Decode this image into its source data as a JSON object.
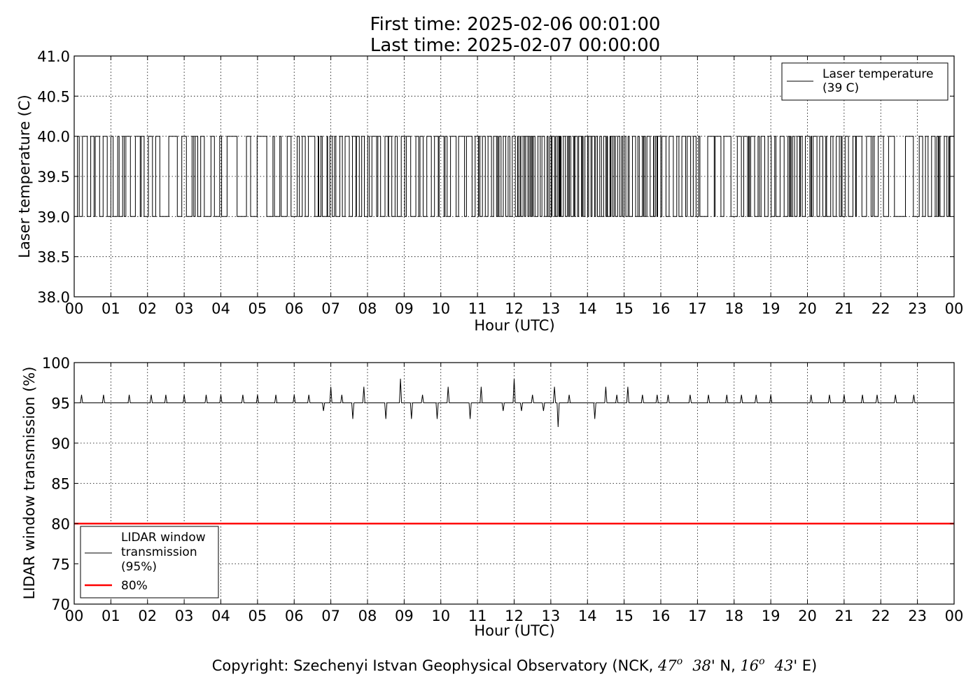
{
  "header": {
    "title_line1": "First time: 2025-02-06 00:01:00",
    "title_line2": "Last time: 2025-02-07 00:00:00"
  },
  "footer": {
    "copyright_prefix": "Copyright: Szechenyi Istvan Geophysical Observatory (NCK, ",
    "lat_deg": "47",
    "deg_sym": "o",
    "lat_min": "38",
    "lat_suffix": "' N, ",
    "lon_deg": "16",
    "lon_min": "43",
    "lon_suffix": "' E)"
  },
  "chart_data": [
    {
      "type": "line",
      "xlabel": "Hour (UTC)",
      "ylabel": "Laser temperature (C)",
      "xlim": [
        0,
        24
      ],
      "ylim": [
        38.0,
        41.0
      ],
      "x_ticks": [
        "00",
        "01",
        "02",
        "03",
        "04",
        "05",
        "06",
        "07",
        "08",
        "09",
        "10",
        "11",
        "12",
        "13",
        "14",
        "15",
        "16",
        "17",
        "18",
        "19",
        "20",
        "21",
        "22",
        "23",
        "00"
      ],
      "y_ticks": [
        "38.0",
        "38.5",
        "39.0",
        "39.5",
        "40.0",
        "40.5",
        "41.0"
      ],
      "grid": true,
      "legend_position": "top-right",
      "legend": [
        "Laser temperature",
        "(39 C)"
      ],
      "colors": {
        "series": "#000000"
      },
      "series": [
        {
          "name": "Laser temperature (39 C)",
          "level_values": [
            39,
            40
          ],
          "note_values": "1-minute samples alternating between 39 and 40",
          "toggle_density_per_hour": [
            14,
            12,
            7,
            10,
            6,
            8,
            10,
            14,
            14,
            13,
            10,
            20,
            22,
            24,
            22,
            20,
            16,
            8,
            16,
            14,
            14,
            12,
            6,
            14
          ]
        }
      ]
    },
    {
      "type": "line",
      "xlabel": "Hour (UTC)",
      "ylabel": "LIDAR window transmission (%)",
      "xlim": [
        0,
        24
      ],
      "ylim": [
        70,
        100
      ],
      "x_ticks": [
        "00",
        "01",
        "02",
        "03",
        "04",
        "05",
        "06",
        "07",
        "08",
        "09",
        "10",
        "11",
        "12",
        "13",
        "14",
        "15",
        "16",
        "17",
        "18",
        "19",
        "20",
        "21",
        "22",
        "23",
        "00"
      ],
      "y_ticks": [
        "70",
        "75",
        "80",
        "85",
        "90",
        "95",
        "100"
      ],
      "grid": true,
      "legend_position": "bottom-left",
      "legend": [
        "LIDAR window",
        "transmission",
        "(95%)",
        "80%"
      ],
      "colors": {
        "series": "#000000",
        "threshold": "#ff0000"
      },
      "series": [
        {
          "name": "LIDAR window transmission (95%)",
          "baseline": 95,
          "x": [
            0.2,
            0.8,
            1.5,
            2.1,
            2.5,
            3.0,
            3.6,
            4.0,
            4.6,
            5.0,
            5.5,
            6.0,
            6.4,
            6.8,
            7.0,
            7.3,
            7.6,
            7.9,
            8.2,
            8.5,
            8.9,
            9.2,
            9.5,
            9.9,
            10.2,
            10.5,
            10.8,
            11.1,
            11.4,
            11.7,
            12.0,
            12.2,
            12.5,
            12.8,
            13.1,
            13.2,
            13.5,
            13.8,
            14.2,
            14.5,
            14.8,
            15.1,
            15.5,
            15.9,
            16.2,
            16.8,
            17.3,
            17.8,
            18.2,
            18.6,
            19.0,
            20.1,
            20.6,
            21.0,
            21.5,
            21.9,
            22.4,
            22.9
          ],
          "values": [
            96,
            96,
            96,
            96,
            96,
            96,
            96,
            96,
            96,
            96,
            96,
            96,
            96,
            94,
            97,
            96,
            93,
            97,
            95,
            93,
            98,
            93,
            96,
            93,
            97,
            95,
            93,
            97,
            95,
            94,
            98,
            94,
            96,
            94,
            97,
            92,
            96,
            95,
            93,
            97,
            96,
            97,
            96,
            96,
            96,
            96,
            96,
            96,
            96,
            96,
            96,
            96,
            96,
            96,
            96,
            96,
            96,
            96
          ]
        },
        {
          "name": "80%",
          "values": [
            80,
            80
          ]
        }
      ]
    }
  ]
}
